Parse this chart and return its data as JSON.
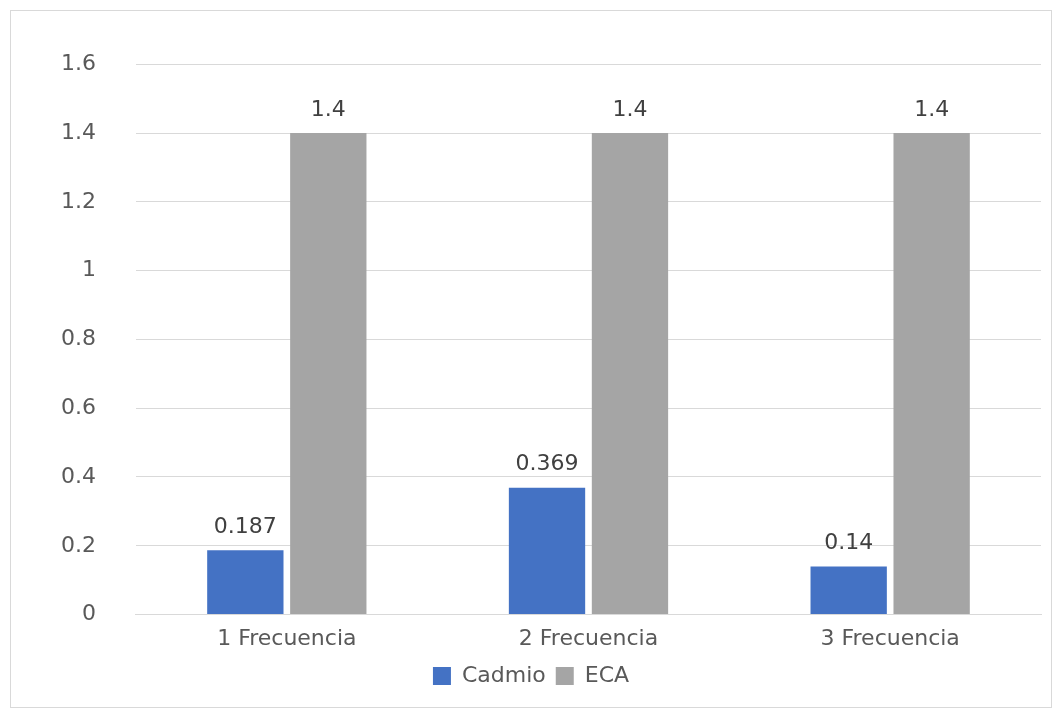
{
  "chart_data": {
    "type": "bar",
    "categories": [
      "1 Frecuencia",
      "2 Frecuencia",
      "3 Frecuencia"
    ],
    "series": [
      {
        "name": "Cadmio",
        "color": "#4472c4",
        "values": [
          0.187,
          0.369,
          0.14
        ]
      },
      {
        "name": "ECA",
        "color": "#a5a5a5",
        "values": [
          1.4,
          1.4,
          1.4
        ]
      }
    ],
    "ylim": [
      0,
      1.6
    ],
    "yticks": [
      0,
      0.2,
      0.4,
      0.6,
      0.8,
      1,
      1.2,
      1.4,
      1.6
    ],
    "grid": "y",
    "legend": "bottom",
    "data_labels": true
  }
}
